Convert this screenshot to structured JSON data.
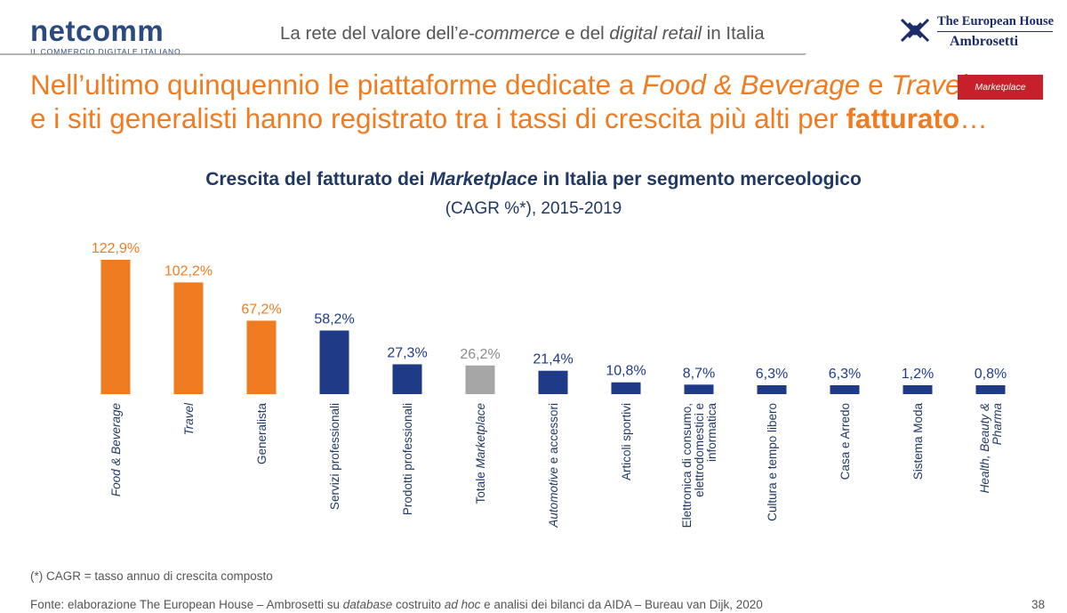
{
  "header": {
    "logo_word": "netcomm",
    "logo_sub": "IL COMMERCIO DIGITALE ITALIANO",
    "tagline_a": "La rete del valore dell’",
    "tagline_b": "e-commerce",
    "tagline_c": " e del ",
    "tagline_d": "digital retail",
    "tagline_e": " in Italia",
    "partner_line1": "The European House",
    "partner_line2": "Ambrosetti"
  },
  "headline": {
    "l1_a": "Nell’ultimo quinquennio le piattaforme dedicate a ",
    "l1_b": "Food & Beverage",
    "l1_c": " e ",
    "l1_d": "Travel",
    "l2_a": "e i siti generalisti hanno registrato tra i tassi di crescita più alti per ",
    "l2_b": "fatturato",
    "l2_c": "…"
  },
  "badge": "Marketplace",
  "chart_title": {
    "a": "Crescita del fatturato dei ",
    "b": "Marketplace",
    "c": " in Italia per segmento merceologico",
    "sub": "(CAGR %*), 2015-2019"
  },
  "colors": {
    "orange": "#f07c22",
    "navy": "#1f3b87",
    "grey": "#a6a6a6",
    "brand_red": "#c8202a"
  },
  "chart_data": {
    "type": "bar",
    "title": "Crescita del fatturato dei Marketplace in Italia per segmento merceologico",
    "subtitle": "(CAGR %*), 2015-2019",
    "categories": [
      "Food & Beverage",
      "Travel",
      "Generalista",
      "Servizi professionali",
      "Prodotti professionali",
      "Totale Marketplace",
      "Automotive e accessori",
      "Articoli sportivi",
      "Elettronica di consumo, elettrodomestici e informatica",
      "Cultura e tempo libero",
      "Casa e Arredo",
      "Sistema Moda",
      "Health, Beauty & Pharma"
    ],
    "values": [
      122.9,
      102.2,
      67.2,
      58.2,
      27.3,
      26.2,
      21.4,
      10.8,
      8.7,
      6.3,
      6.3,
      1.2,
      0.8
    ],
    "value_labels": [
      "122,9%",
      "102,2%",
      "67,2%",
      "58,2%",
      "27,3%",
      "26,2%",
      "21,4%",
      "10,8%",
      "8,7%",
      "6,3%",
      "6,3%",
      "1,2%",
      "0,8%"
    ],
    "bar_colors": [
      "orange",
      "orange",
      "orange",
      "navy",
      "navy",
      "grey",
      "navy",
      "navy",
      "navy",
      "navy",
      "navy",
      "navy",
      "navy"
    ],
    "label_lines": [
      [
        {
          "t": "Food & Beverage",
          "i": true
        }
      ],
      [
        {
          "t": "Travel",
          "i": true
        }
      ],
      [
        {
          "t": "Generalista",
          "i": false
        }
      ],
      [
        {
          "t": "Servizi professionali",
          "i": false
        }
      ],
      [
        {
          "t": "Prodotti professionali",
          "i": false
        }
      ],
      [
        {
          "t": "Totale ",
          "i": false
        },
        {
          "t": "Marketplace",
          "i": true
        }
      ],
      [
        {
          "t": "Automotive",
          "i": true
        },
        {
          "t": " e accessori",
          "i": false
        }
      ],
      [
        {
          "t": "Articoli sportivi",
          "i": false
        }
      ],
      [
        {
          "t": "Elettronica di consumo,",
          "i": false
        },
        {
          "t": "\n",
          "i": false
        },
        {
          "t": "elettrodomestici e",
          "i": false
        },
        {
          "t": "\n",
          "i": false
        },
        {
          "t": "informatica",
          "i": false
        }
      ],
      [
        {
          "t": "Cultura e tempo libero",
          "i": false
        }
      ],
      [
        {
          "t": "Casa e Arredo",
          "i": false
        }
      ],
      [
        {
          "t": "Sistema Moda",
          "i": false
        }
      ],
      [
        {
          "t": "Health, Beauty &",
          "i": true
        },
        {
          "t": "\n",
          "i": false
        },
        {
          "t": "Pharma",
          "i": true
        }
      ]
    ],
    "ylim": [
      0,
      130
    ],
    "grid": false,
    "legend": "none"
  },
  "footer": {
    "note": "(*) CAGR = tasso annuo di crescita composto",
    "source_a": "Fonte: elaborazione The European House – Ambrosetti su ",
    "source_b": "database",
    "source_c": " costruito ",
    "source_d": "ad hoc",
    "source_e": " e analisi dei bilanci da AIDA – Bureau van Dijk, 2020",
    "page": "38"
  }
}
